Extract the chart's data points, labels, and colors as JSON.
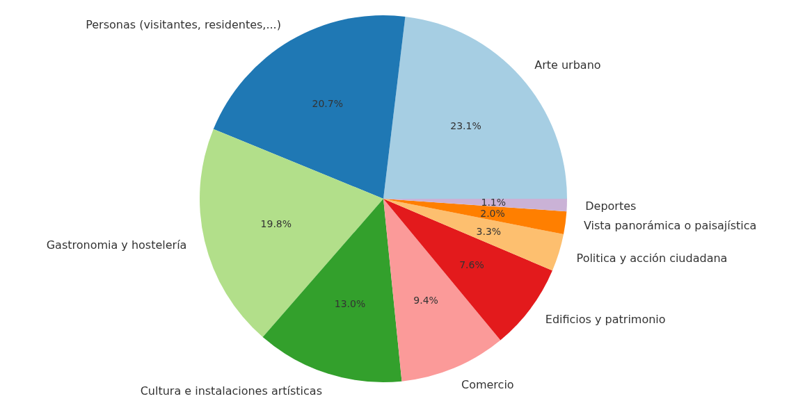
{
  "chart_data": {
    "type": "pie",
    "categories": [
      "Arte urbano",
      "Personas (visitantes, residentes,...)",
      "Gastronomia y hostelería",
      "Cultura e instalaciones artísticas",
      "Comercio",
      "Edificios y patrimonio",
      "Politica y acción ciudadana",
      "Vista panorámica o paisajística",
      "Deportes"
    ],
    "values": [
      23.1,
      20.7,
      19.8,
      13.0,
      9.4,
      7.6,
      3.3,
      2.0,
      1.1
    ],
    "value_labels": [
      "23.1%",
      "20.7%",
      "19.8%",
      "13.0%",
      "9.4%",
      "7.6%",
      "3.3%",
      "2.0%",
      "1.1%"
    ],
    "colors": [
      "#a6cee3",
      "#1f78b4",
      "#b2df8a",
      "#33a02c",
      "#fb9a99",
      "#e31a1c",
      "#fdbf6f",
      "#ff7f00",
      "#cab2d6"
    ]
  }
}
